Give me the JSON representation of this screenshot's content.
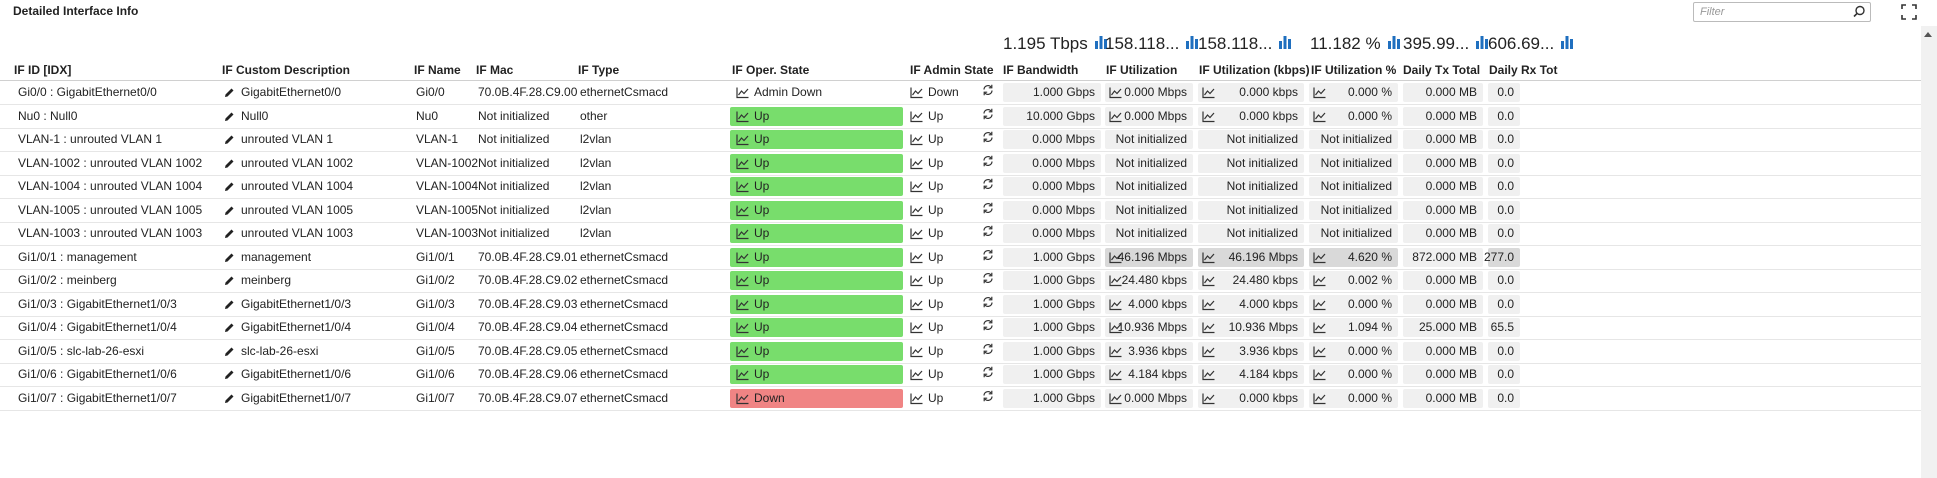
{
  "panel": {
    "title": "Detailed Interface Info",
    "filter_placeholder": "Filter"
  },
  "summary": [
    "1.195 Tbps",
    "158.118...",
    "158.118...",
    "11.182 %",
    "395.99...",
    "606.69..."
  ],
  "columns": [
    "IF ID [IDX]",
    "IF Custom Description",
    "IF Name",
    "IF Mac",
    "IF Type",
    "IF Oper. State",
    "IF Admin State",
    "IF Bandwidth",
    "IF Utilization",
    "IF Utilization (kbps)",
    "IF Utilization %",
    "Daily Tx Total",
    "Daily Rx Tot"
  ],
  "rows": [
    {
      "id": "Gi0/0 : GigabitEthernet0/0",
      "desc": "GigabitEthernet0/0",
      "name": "Gi0/0",
      "mac": "70.0B.4F.28.C9.00",
      "type": "ethernetCsmacd",
      "oper": "Admin Down",
      "oper_style": "plain",
      "admin": "Down",
      "bw": "1.000 Gbps",
      "util": "0.000 Mbps",
      "util_kbps": "0.000 kbps",
      "util_pct": "0.000 %",
      "tx": "0.000 MB",
      "rx": "0.0",
      "util_trend": true,
      "hi": false
    },
    {
      "id": "Nu0 : Null0",
      "desc": "Null0",
      "name": "Nu0",
      "mac": "Not initialized",
      "type": "other",
      "oper": "Up",
      "oper_style": "up",
      "admin": "Up",
      "bw": "10.000 Gbps",
      "util": "0.000 Mbps",
      "util_kbps": "0.000 kbps",
      "util_pct": "0.000 %",
      "tx": "0.000 MB",
      "rx": "0.0",
      "util_trend": true,
      "hi": false
    },
    {
      "id": "VLAN-1 : unrouted VLAN 1",
      "desc": "unrouted VLAN 1",
      "name": "VLAN-1",
      "mac": "Not initialized",
      "type": "l2vlan",
      "oper": "Up",
      "oper_style": "up",
      "admin": "Up",
      "bw": "0.000 Mbps",
      "util": "Not initialized",
      "util_kbps": "Not initialized",
      "util_pct": "Not initialized",
      "tx": "0.000 MB",
      "rx": "0.0",
      "util_trend": false,
      "hi": false
    },
    {
      "id": "VLAN-1002 : unrouted VLAN 1002",
      "desc": "unrouted VLAN 1002",
      "name": "VLAN-1002",
      "mac": "Not initialized",
      "type": "l2vlan",
      "oper": "Up",
      "oper_style": "up",
      "admin": "Up",
      "bw": "0.000 Mbps",
      "util": "Not initialized",
      "util_kbps": "Not initialized",
      "util_pct": "Not initialized",
      "tx": "0.000 MB",
      "rx": "0.0",
      "util_trend": false,
      "hi": false
    },
    {
      "id": "VLAN-1004 : unrouted VLAN 1004",
      "desc": "unrouted VLAN 1004",
      "name": "VLAN-1004",
      "mac": "Not initialized",
      "type": "l2vlan",
      "oper": "Up",
      "oper_style": "up",
      "admin": "Up",
      "bw": "0.000 Mbps",
      "util": "Not initialized",
      "util_kbps": "Not initialized",
      "util_pct": "Not initialized",
      "tx": "0.000 MB",
      "rx": "0.0",
      "util_trend": false,
      "hi": false
    },
    {
      "id": "VLAN-1005 : unrouted VLAN 1005",
      "desc": "unrouted VLAN 1005",
      "name": "VLAN-1005",
      "mac": "Not initialized",
      "type": "l2vlan",
      "oper": "Up",
      "oper_style": "up",
      "admin": "Up",
      "bw": "0.000 Mbps",
      "util": "Not initialized",
      "util_kbps": "Not initialized",
      "util_pct": "Not initialized",
      "tx": "0.000 MB",
      "rx": "0.0",
      "util_trend": false,
      "hi": false
    },
    {
      "id": "VLAN-1003 : unrouted VLAN 1003",
      "desc": "unrouted VLAN 1003",
      "name": "VLAN-1003",
      "mac": "Not initialized",
      "type": "l2vlan",
      "oper": "Up",
      "oper_style": "up",
      "admin": "Up",
      "bw": "0.000 Mbps",
      "util": "Not initialized",
      "util_kbps": "Not initialized",
      "util_pct": "Not initialized",
      "tx": "0.000 MB",
      "rx": "0.0",
      "util_trend": false,
      "hi": false
    },
    {
      "id": "Gi1/0/1 : management",
      "desc": "management",
      "name": "Gi1/0/1",
      "mac": "70.0B.4F.28.C9.01",
      "type": "ethernetCsmacd",
      "oper": "Up",
      "oper_style": "up",
      "admin": "Up",
      "bw": "1.000 Gbps",
      "util": "46.196 Mbps",
      "util_kbps": "46.196 Mbps",
      "util_pct": "4.620 %",
      "tx": "872.000 MB",
      "rx": "277.0",
      "util_trend": true,
      "hi": true
    },
    {
      "id": "Gi1/0/2 : meinberg",
      "desc": "meinberg",
      "name": "Gi1/0/2",
      "mac": "70.0B.4F.28.C9.02",
      "type": "ethernetCsmacd",
      "oper": "Up",
      "oper_style": "up",
      "admin": "Up",
      "bw": "1.000 Gbps",
      "util": "24.480 kbps",
      "util_kbps": "24.480 kbps",
      "util_pct": "0.002 %",
      "tx": "0.000 MB",
      "rx": "0.0",
      "util_trend": true,
      "hi": false
    },
    {
      "id": "Gi1/0/3 : GigabitEthernet1/0/3",
      "desc": "GigabitEthernet1/0/3",
      "name": "Gi1/0/3",
      "mac": "70.0B.4F.28.C9.03",
      "type": "ethernetCsmacd",
      "oper": "Up",
      "oper_style": "up",
      "admin": "Up",
      "bw": "1.000 Gbps",
      "util": "4.000 kbps",
      "util_kbps": "4.000 kbps",
      "util_pct": "0.000 %",
      "tx": "0.000 MB",
      "rx": "0.0",
      "util_trend": true,
      "hi": false
    },
    {
      "id": "Gi1/0/4 : GigabitEthernet1/0/4",
      "desc": "GigabitEthernet1/0/4",
      "name": "Gi1/0/4",
      "mac": "70.0B.4F.28.C9.04",
      "type": "ethernetCsmacd",
      "oper": "Up",
      "oper_style": "up",
      "admin": "Up",
      "bw": "1.000 Gbps",
      "util": "10.936 Mbps",
      "util_kbps": "10.936 Mbps",
      "util_pct": "1.094 %",
      "tx": "25.000 MB",
      "rx": "65.5",
      "util_trend": true,
      "hi": false
    },
    {
      "id": "Gi1/0/5 : slc-lab-26-esxi",
      "desc": "slc-lab-26-esxi",
      "name": "Gi1/0/5",
      "mac": "70.0B.4F.28.C9.05",
      "type": "ethernetCsmacd",
      "oper": "Up",
      "oper_style": "up",
      "admin": "Up",
      "bw": "1.000 Gbps",
      "util": "3.936 kbps",
      "util_kbps": "3.936 kbps",
      "util_pct": "0.000 %",
      "tx": "0.000 MB",
      "rx": "0.0",
      "util_trend": true,
      "hi": false
    },
    {
      "id": "Gi1/0/6 : GigabitEthernet1/0/6",
      "desc": "GigabitEthernet1/0/6",
      "name": "Gi1/0/6",
      "mac": "70.0B.4F.28.C9.06",
      "type": "ethernetCsmacd",
      "oper": "Up",
      "oper_style": "up",
      "admin": "Up",
      "bw": "1.000 Gbps",
      "util": "4.184 kbps",
      "util_kbps": "4.184 kbps",
      "util_pct": "0.000 %",
      "tx": "0.000 MB",
      "rx": "0.0",
      "util_trend": true,
      "hi": false
    },
    {
      "id": "Gi1/0/7 : GigabitEthernet1/0/7",
      "desc": "GigabitEthernet1/0/7",
      "name": "Gi1/0/7",
      "mac": "70.0B.4F.28.C9.07",
      "type": "ethernetCsmacd",
      "oper": "Down",
      "oper_style": "down",
      "admin": "Up",
      "bw": "1.000 Gbps",
      "util": "0.000 Mbps",
      "util_kbps": "0.000 kbps",
      "util_pct": "0.000 %",
      "tx": "0.000 MB",
      "rx": "0.0",
      "util_trend": true,
      "hi": false
    }
  ],
  "colors": {
    "up": "#78dd6c",
    "down": "#f08484",
    "accent": "#1f6fbf"
  },
  "icons": {
    "edit": "pencil-icon",
    "trend": "trend-icon",
    "refresh": "refresh-icon",
    "summary": "bar-chart-icon",
    "search": "search-icon",
    "expand": "expand-icon"
  }
}
